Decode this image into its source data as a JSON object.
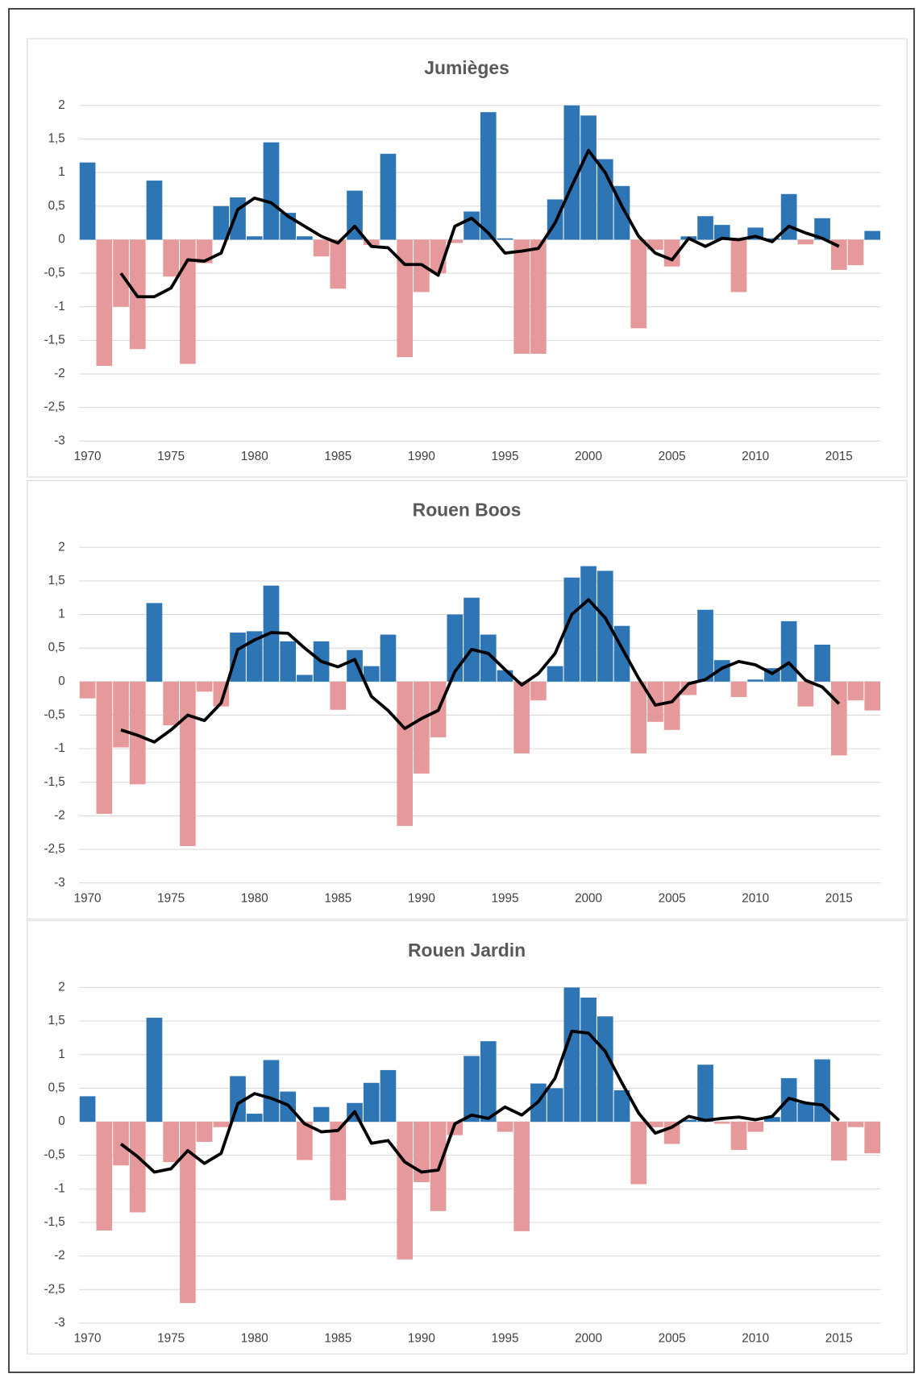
{
  "chart_data": [
    {
      "type": "bar",
      "title": "Jumièges",
      "x": [
        1970,
        1971,
        1972,
        1973,
        1974,
        1975,
        1976,
        1977,
        1978,
        1979,
        1980,
        1981,
        1982,
        1983,
        1984,
        1985,
        1986,
        1987,
        1988,
        1989,
        1990,
        1991,
        1992,
        1993,
        1994,
        1995,
        1996,
        1997,
        1998,
        1999,
        2000,
        2001,
        2002,
        2003,
        2004,
        2005,
        2006,
        2007,
        2008,
        2009,
        2010,
        2011,
        2012,
        2013,
        2014,
        2015,
        2016,
        2017
      ],
      "values": [
        1.15,
        -1.88,
        -1.0,
        -1.63,
        0.88,
        -0.55,
        -1.85,
        -0.35,
        0.5,
        0.63,
        0.05,
        1.45,
        0.4,
        0.05,
        -0.25,
        -0.73,
        0.73,
        -0.08,
        1.28,
        -1.75,
        -0.78,
        -0.5,
        -0.05,
        0.42,
        1.9,
        0.02,
        -1.7,
        -1.7,
        0.6,
        2.0,
        1.85,
        1.2,
        0.8,
        -1.32,
        -0.15,
        -0.4,
        0.05,
        0.35,
        0.22,
        -0.78,
        0.18,
        0.02,
        0.68,
        -0.07,
        0.32,
        -0.45,
        -0.38,
        0.13
      ],
      "line": [
        null,
        null,
        -0.5,
        -0.85,
        -0.85,
        -0.72,
        -0.3,
        -0.32,
        -0.2,
        0.45,
        0.62,
        0.55,
        0.35,
        0.2,
        0.05,
        -0.05,
        0.2,
        -0.1,
        -0.12,
        -0.37,
        -0.37,
        -0.53,
        0.2,
        0.32,
        0.1,
        -0.2,
        -0.17,
        -0.13,
        0.25,
        0.8,
        1.33,
        1.0,
        0.5,
        0.05,
        -0.2,
        -0.3,
        0.02,
        -0.1,
        0.02,
        0.0,
        0.05,
        -0.03,
        0.2,
        0.1,
        0.02,
        -0.1,
        null,
        null
      ],
      "positive_color": "#2e75b6",
      "negative_color": "#e6999a",
      "line_color": "#000000",
      "xlim": [
        1969.5,
        2017.5
      ],
      "xticks": [
        1970,
        1975,
        1980,
        1985,
        1990,
        1995,
        2000,
        2005,
        2010,
        2015
      ],
      "ylim": [
        -3,
        2
      ],
      "yticks": [
        2,
        {
          "value": 1.5,
          "label": "1,5"
        },
        1,
        {
          "value": 0.5,
          "label": "0,5"
        },
        0,
        {
          "value": -0.5,
          "label": "-0,5"
        },
        -1,
        {
          "value": -1.5,
          "label": "-1,5"
        },
        -2,
        {
          "value": -2.5,
          "label": "-2,5"
        },
        -3
      ],
      "grid": true
    },
    {
      "type": "bar",
      "title": "Rouen Boos",
      "x": [
        1970,
        1971,
        1972,
        1973,
        1974,
        1975,
        1976,
        1977,
        1978,
        1979,
        1980,
        1981,
        1982,
        1983,
        1984,
        1985,
        1986,
        1987,
        1988,
        1989,
        1990,
        1991,
        1992,
        1993,
        1994,
        1995,
        1996,
        1997,
        1998,
        1999,
        2000,
        2001,
        2002,
        2003,
        2004,
        2005,
        2006,
        2007,
        2008,
        2009,
        2010,
        2011,
        2012,
        2013,
        2014,
        2015,
        2016,
        2017
      ],
      "values": [
        -0.25,
        -1.97,
        -0.98,
        -1.53,
        1.17,
        -0.65,
        -2.45,
        -0.15,
        -0.37,
        0.73,
        0.75,
        1.43,
        0.6,
        0.1,
        0.6,
        -0.42,
        0.47,
        0.23,
        0.7,
        -2.15,
        -1.37,
        -0.83,
        1.0,
        1.25,
        0.7,
        0.17,
        -1.07,
        -0.28,
        0.23,
        1.55,
        1.72,
        1.65,
        0.83,
        -1.07,
        -0.6,
        -0.72,
        -0.2,
        1.07,
        0.32,
        -0.23,
        0.03,
        0.2,
        0.9,
        -0.37,
        0.55,
        -1.1,
        -0.28,
        -0.43
      ],
      "line": [
        null,
        null,
        -0.72,
        -0.8,
        -0.9,
        -0.72,
        -0.5,
        -0.58,
        -0.32,
        0.48,
        0.62,
        0.73,
        0.72,
        0.5,
        0.3,
        0.22,
        0.33,
        -0.22,
        -0.43,
        -0.7,
        -0.55,
        -0.43,
        0.15,
        0.48,
        0.42,
        0.18,
        -0.05,
        0.12,
        0.42,
        1.0,
        1.22,
        0.95,
        0.5,
        0.05,
        -0.35,
        -0.3,
        -0.03,
        0.03,
        0.2,
        0.3,
        0.25,
        0.12,
        0.28,
        0.02,
        -0.08,
        -0.33,
        null,
        null
      ],
      "positive_color": "#2e75b6",
      "negative_color": "#e6999a",
      "line_color": "#000000",
      "xlim": [
        1969.5,
        2017.5
      ],
      "xticks": [
        1970,
        1975,
        1980,
        1985,
        1990,
        1995,
        2000,
        2005,
        2010,
        2015
      ],
      "ylim": [
        -3,
        2
      ],
      "yticks": [
        2,
        {
          "value": 1.5,
          "label": "1,5"
        },
        1,
        {
          "value": 0.5,
          "label": "0,5"
        },
        0,
        {
          "value": -0.5,
          "label": "-0,5"
        },
        -1,
        {
          "value": -1.5,
          "label": "-1,5"
        },
        -2,
        {
          "value": -2.5,
          "label": "-2,5"
        },
        -3
      ],
      "grid": true
    },
    {
      "type": "bar",
      "title": "Rouen Jardin",
      "x": [
        1970,
        1971,
        1972,
        1973,
        1974,
        1975,
        1976,
        1977,
        1978,
        1979,
        1980,
        1981,
        1982,
        1983,
        1984,
        1985,
        1986,
        1987,
        1988,
        1989,
        1990,
        1991,
        1992,
        1993,
        1994,
        1995,
        1996,
        1997,
        1998,
        1999,
        2000,
        2001,
        2002,
        2003,
        2004,
        2005,
        2006,
        2007,
        2008,
        2009,
        2010,
        2011,
        2012,
        2013,
        2014,
        2015,
        2016,
        2017
      ],
      "values": [
        0.38,
        -1.62,
        -0.65,
        -1.35,
        1.55,
        -0.6,
        -2.7,
        -0.3,
        -0.08,
        0.68,
        0.12,
        0.92,
        0.45,
        -0.57,
        0.22,
        -1.17,
        0.28,
        0.58,
        0.77,
        -2.05,
        -0.9,
        -1.33,
        -0.2,
        0.98,
        1.2,
        -0.15,
        -1.63,
        0.57,
        0.5,
        2.0,
        1.85,
        1.57,
        0.47,
        -0.93,
        -0.08,
        -0.33,
        0.03,
        0.85,
        -0.03,
        -0.42,
        -0.15,
        0.07,
        0.65,
        0.28,
        0.93,
        -0.58,
        -0.08,
        -0.47
      ],
      "line": [
        null,
        null,
        -0.33,
        -0.52,
        -0.75,
        -0.7,
        -0.43,
        -0.62,
        -0.47,
        0.27,
        0.42,
        0.35,
        0.25,
        -0.03,
        -0.15,
        -0.13,
        0.15,
        -0.32,
        -0.28,
        -0.6,
        -0.75,
        -0.72,
        -0.03,
        0.1,
        0.05,
        0.22,
        0.1,
        0.3,
        0.65,
        1.35,
        1.32,
        1.05,
        0.58,
        0.13,
        -0.17,
        -0.08,
        0.08,
        0.02,
        0.05,
        0.07,
        0.03,
        0.08,
        0.35,
        0.28,
        0.25,
        0.02,
        null,
        null
      ],
      "positive_color": "#2e75b6",
      "negative_color": "#e6999a",
      "line_color": "#000000",
      "xlim": [
        1969.5,
        2017.5
      ],
      "xticks": [
        1970,
        1975,
        1980,
        1985,
        1990,
        1995,
        2000,
        2005,
        2010,
        2015
      ],
      "ylim": [
        -3,
        2
      ],
      "yticks": [
        2,
        {
          "value": 1.5,
          "label": "1,5"
        },
        1,
        {
          "value": 0.5,
          "label": "0,5"
        },
        0,
        {
          "value": -0.5,
          "label": "-0,5"
        },
        -1,
        {
          "value": -1.5,
          "label": "-1,5"
        },
        -2,
        {
          "value": -2.5,
          "label": "-2,5"
        },
        -3
      ],
      "grid": true
    }
  ]
}
